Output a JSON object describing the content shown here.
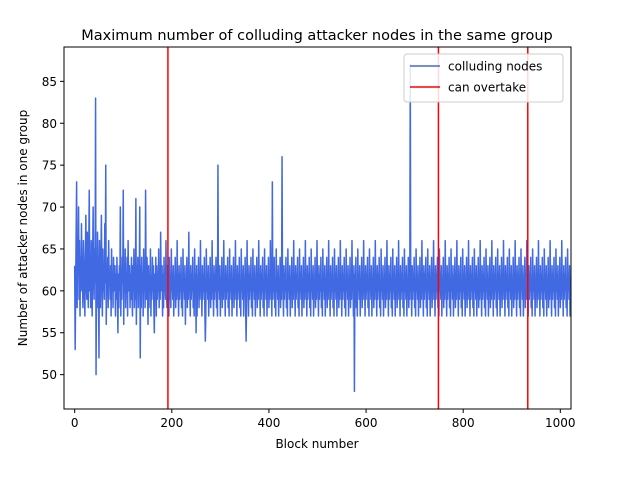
{
  "chart_data": {
    "type": "line",
    "title": "Maximum number of colluding attacker nodes in the same group",
    "xlabel": "Block number",
    "ylabel": "Number of attacker nodes in one group",
    "xlim": [
      -22,
      1022
    ],
    "ylim": [
      45.9,
      89.1
    ],
    "xticks": [
      0,
      200,
      400,
      600,
      800,
      1000
    ],
    "yticks": [
      50,
      55,
      60,
      65,
      70,
      75,
      80,
      85
    ],
    "grid": false,
    "legend_position": "top-right",
    "series": [
      {
        "name": "colluding nodes",
        "color": "#4169e1",
        "x_start": 0,
        "x_step": 1,
        "values": [
          63,
          53,
          60,
          67,
          73,
          58,
          65,
          62,
          70,
          59,
          66,
          57,
          64,
          60,
          68,
          62,
          61,
          58,
          66,
          63,
          60,
          57,
          64,
          69,
          61,
          59,
          67,
          62,
          58,
          65,
          72,
          60,
          63,
          58,
          66,
          61,
          57,
          64,
          70,
          62,
          59,
          65,
          61,
          83,
          50,
          62,
          58,
          67,
          63,
          60,
          52,
          66,
          61,
          58,
          64,
          69,
          62,
          57,
          65,
          60,
          63,
          59,
          68,
          61,
          75,
          56,
          62,
          60,
          64,
          58,
          66,
          61,
          62,
          59,
          63,
          57,
          65,
          60,
          62,
          58,
          64,
          61,
          60,
          63,
          57,
          62,
          59,
          64,
          60,
          55,
          62,
          58,
          63,
          60,
          70,
          57,
          62,
          59,
          64,
          61,
          72,
          56,
          63,
          60,
          65,
          58,
          62,
          60,
          64,
          57,
          66,
          61,
          60,
          63,
          58,
          62,
          59,
          64,
          60,
          57,
          63,
          60,
          65,
          58,
          62,
          59,
          71,
          56,
          63,
          60,
          64,
          58,
          62,
          61,
          70,
          52,
          63,
          58,
          64,
          60,
          62,
          57,
          65,
          60,
          63,
          58,
          72,
          61,
          59,
          64,
          60,
          56,
          63,
          58,
          62,
          60,
          65,
          57,
          61,
          59,
          64,
          60,
          63,
          58,
          55,
          62,
          60,
          64,
          57,
          63,
          59,
          61,
          60,
          65,
          58,
          62,
          59,
          67,
          61,
          60,
          63,
          57,
          62,
          58,
          64,
          60,
          61,
          59,
          66,
          60,
          58,
          63,
          60,
          62,
          57,
          64,
          59,
          61,
          58,
          65,
          60,
          62,
          59,
          63,
          57,
          61,
          60,
          64,
          58,
          62,
          59,
          66,
          60,
          61,
          57,
          63,
          59,
          62,
          60,
          64,
          58,
          61,
          57,
          65,
          60,
          62,
          59,
          63,
          56,
          61,
          60,
          64,
          58,
          62,
          59,
          67,
          60,
          61,
          57,
          63,
          59,
          62,
          60,
          64,
          58,
          61,
          57,
          65,
          60,
          62,
          55,
          63,
          57,
          61,
          60,
          64,
          58,
          62,
          59,
          66,
          60,
          61,
          57,
          63,
          59,
          62,
          60,
          64,
          58,
          54,
          57,
          65,
          60,
          62,
          59,
          63,
          57,
          61,
          60,
          64,
          58,
          62,
          59,
          66,
          60,
          61,
          57,
          63,
          59,
          62,
          60,
          64,
          58,
          61,
          57,
          75,
          60,
          62,
          59,
          63,
          57,
          61,
          60,
          64,
          58,
          62,
          59,
          66,
          60,
          61,
          57,
          63,
          59,
          62,
          60,
          64,
          58,
          61,
          57,
          65,
          60,
          62,
          59,
          63,
          57,
          61,
          60,
          64,
          58,
          62,
          59,
          66,
          60,
          61,
          57,
          63,
          59,
          62,
          60,
          64,
          58,
          61,
          57,
          65,
          60,
          62,
          59,
          63,
          57,
          61,
          60,
          64,
          58,
          54,
          59,
          66,
          60,
          61,
          57,
          63,
          59,
          62,
          60,
          64,
          58,
          61,
          57,
          65,
          60,
          62,
          59,
          63,
          57,
          61,
          60,
          64,
          58,
          62,
          59,
          66,
          60,
          61,
          57,
          63,
          59,
          62,
          60,
          64,
          58,
          61,
          57,
          65,
          60,
          62,
          59,
          63,
          57,
          61,
          60,
          64,
          58,
          62,
          59,
          66,
          60,
          61,
          57,
          73,
          59,
          62,
          60,
          64,
          58,
          61,
          57,
          65,
          60,
          62,
          59,
          63,
          57,
          61,
          60,
          64,
          58,
          62,
          59,
          76,
          60,
          61,
          57,
          63,
          59,
          62,
          60,
          64,
          58,
          61,
          57,
          65,
          60,
          62,
          59,
          63,
          57,
          61,
          60,
          64,
          58,
          62,
          59,
          66,
          60,
          61,
          57,
          63,
          59,
          62,
          60,
          64,
          58,
          61,
          57,
          65,
          60,
          62,
          59,
          63,
          57,
          61,
          60,
          64,
          58,
          62,
          59,
          66,
          60,
          61,
          57,
          63,
          59,
          62,
          60,
          64,
          58,
          61,
          57,
          65,
          60,
          62,
          59,
          63,
          57,
          61,
          60,
          64,
          58,
          62,
          59,
          66,
          60,
          61,
          57,
          63,
          59,
          62,
          60,
          64,
          58,
          61,
          57,
          65,
          60,
          62,
          59,
          63,
          57,
          61,
          60,
          64,
          58,
          62,
          59,
          66,
          60,
          61,
          57,
          63,
          59,
          62,
          60,
          64,
          58,
          61,
          57,
          65,
          60,
          62,
          59,
          63,
          57,
          61,
          60,
          64,
          58,
          62,
          59,
          66,
          60,
          61,
          57,
          63,
          59,
          62,
          60,
          64,
          58,
          61,
          57,
          65,
          60,
          62,
          59,
          63,
          57,
          61,
          60,
          64,
          58,
          62,
          59,
          66,
          60,
          61,
          57,
          63,
          48,
          62,
          60,
          64,
          58,
          61,
          57,
          65,
          60,
          62,
          59,
          63,
          57,
          61,
          60,
          64,
          58,
          62,
          59,
          66,
          60,
          61,
          57,
          63,
          59,
          62,
          60,
          64,
          58,
          61,
          57,
          65,
          60,
          62,
          59,
          63,
          57,
          61,
          60,
          64,
          58,
          62,
          59,
          66,
          60,
          61,
          57,
          63,
          59,
          62,
          60,
          64,
          58,
          61,
          57,
          65,
          60,
          62,
          59,
          63,
          57,
          61,
          60,
          64,
          58,
          62,
          59,
          66,
          60,
          61,
          57,
          63,
          59,
          62,
          60,
          64,
          58,
          61,
          57,
          65,
          60,
          62,
          59,
          63,
          57,
          61,
          60,
          64,
          58,
          62,
          59,
          66,
          60,
          61,
          57,
          63,
          59,
          62,
          60,
          64,
          58,
          61,
          57,
          65,
          60,
          62,
          59,
          63,
          57,
          61,
          60,
          64,
          58,
          62,
          59,
          87,
          60,
          61,
          57,
          63,
          59,
          62,
          60,
          64,
          58,
          61,
          57,
          65,
          60,
          62,
          59,
          63,
          57,
          61,
          60,
          64,
          58,
          62,
          59,
          66,
          60,
          61,
          57,
          63,
          59,
          62,
          60,
          64,
          58,
          61,
          57,
          65,
          60,
          62,
          59,
          63,
          57,
          61,
          60,
          64,
          58,
          62,
          59,
          66,
          60,
          61,
          57,
          63,
          59,
          62,
          60,
          64,
          58,
          61,
          57,
          65,
          60,
          62,
          59,
          63,
          57,
          61,
          60,
          64,
          58,
          62,
          59,
          66,
          60,
          61,
          57,
          63,
          59,
          62,
          60,
          64,
          58,
          61,
          57,
          65,
          60,
          62,
          59,
          63,
          57,
          61,
          60,
          64,
          58,
          62,
          59,
          66,
          60,
          61,
          57,
          63,
          59,
          62,
          60,
          64,
          58,
          61,
          57,
          65,
          60,
          62,
          59,
          63,
          57,
          61,
          60,
          64,
          58,
          62,
          59,
          66,
          60,
          61,
          57,
          63,
          59,
          62,
          60,
          64,
          58,
          61,
          57,
          65,
          60,
          62,
          59,
          63,
          57,
          61,
          60,
          64,
          58,
          62,
          59,
          66,
          60,
          61,
          57,
          63,
          59,
          62,
          60,
          64,
          58,
          61,
          57,
          65,
          60,
          62,
          59,
          63,
          57,
          61,
          60,
          64,
          58,
          62,
          59,
          66,
          60,
          61,
          57,
          63,
          59,
          62,
          60,
          64,
          58,
          61,
          57,
          65,
          60,
          62,
          59,
          63,
          57,
          61,
          60,
          64,
          58,
          62,
          59,
          66,
          60,
          61,
          57,
          63,
          59,
          62,
          60,
          64,
          58,
          61,
          57,
          65,
          60,
          62,
          59,
          63,
          57,
          61,
          60,
          64,
          58,
          62,
          59,
          66,
          60,
          61,
          57,
          63,
          59,
          62,
          60,
          64,
          58,
          61,
          57,
          65,
          60,
          62,
          59,
          63,
          57,
          61,
          60,
          64,
          58,
          62,
          59,
          66,
          60,
          61,
          57,
          63,
          59,
          62,
          60,
          64,
          58,
          61,
          57,
          65,
          60,
          62,
          59,
          63,
          57,
          61,
          60,
          64,
          58,
          62,
          59,
          66,
          60,
          61,
          57,
          63,
          59,
          62,
          60,
          64,
          58,
          61,
          57,
          65,
          60,
          62,
          59,
          63,
          57,
          61,
          60,
          64,
          58,
          62,
          59,
          66,
          60,
          61,
          57,
          63,
          59,
          62,
          60,
          64,
          58,
          61,
          57,
          65,
          60,
          62,
          59,
          63,
          57,
          61,
          60,
          64,
          58,
          62,
          59,
          66,
          60,
          61,
          57,
          63,
          59,
          62,
          60,
          64,
          58,
          61,
          57,
          65,
          60,
          62,
          59,
          63,
          57,
          61,
          60,
          64,
          58,
          62,
          59,
          66,
          60,
          61,
          57,
          63,
          59,
          62,
          60,
          64,
          58,
          61,
          57,
          65,
          60,
          62,
          59,
          63,
          57,
          61,
          60,
          64,
          58,
          62,
          59,
          66,
          60,
          61,
          57,
          63,
          59,
          62,
          60,
          64,
          58,
          61,
          57,
          65,
          60,
          62,
          59,
          63,
          57,
          61,
          60,
          64,
          58,
          62,
          59,
          66,
          60,
          61,
          57,
          63,
          59,
          62,
          60,
          64,
          58,
          61,
          57,
          65,
          60,
          62,
          59,
          63,
          57,
          61,
          60,
          64,
          58,
          62,
          59,
          66,
          60,
          61,
          57,
          63,
          59,
          62,
          60,
          64,
          58,
          61,
          57,
          65,
          60,
          62,
          59,
          63,
          57,
          61,
          56
        ]
      }
    ],
    "vertical_lines": {
      "name": "can overtake",
      "color": "#ff0000",
      "x": [
        192,
        749,
        933
      ]
    }
  }
}
